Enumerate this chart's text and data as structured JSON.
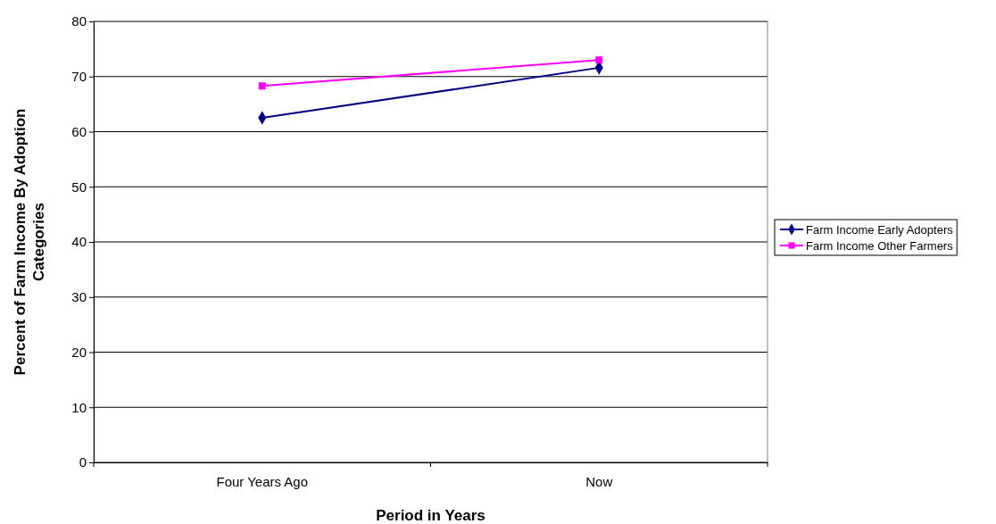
{
  "chart_data": {
    "type": "line",
    "xlabel": "Period in Years",
    "ylabel": "Percent of Farm Income By Adoption Categories",
    "categories": [
      "Four Years Ago",
      "Now"
    ],
    "series": [
      {
        "name": "Farm Income Early Adopters",
        "color": "#000080",
        "values": [
          62.5,
          71.6
        ],
        "marker": "diamond"
      },
      {
        "name": "Farm Income Other Farmers",
        "color": "#ff00ff",
        "values": [
          68.3,
          73.0
        ],
        "marker": "square"
      }
    ],
    "ylim": [
      0,
      80
    ],
    "yticks": [
      0,
      10,
      20,
      30,
      40,
      50,
      60,
      70,
      80
    ],
    "grid": "y",
    "legend": "right",
    "line_style": "solid"
  }
}
